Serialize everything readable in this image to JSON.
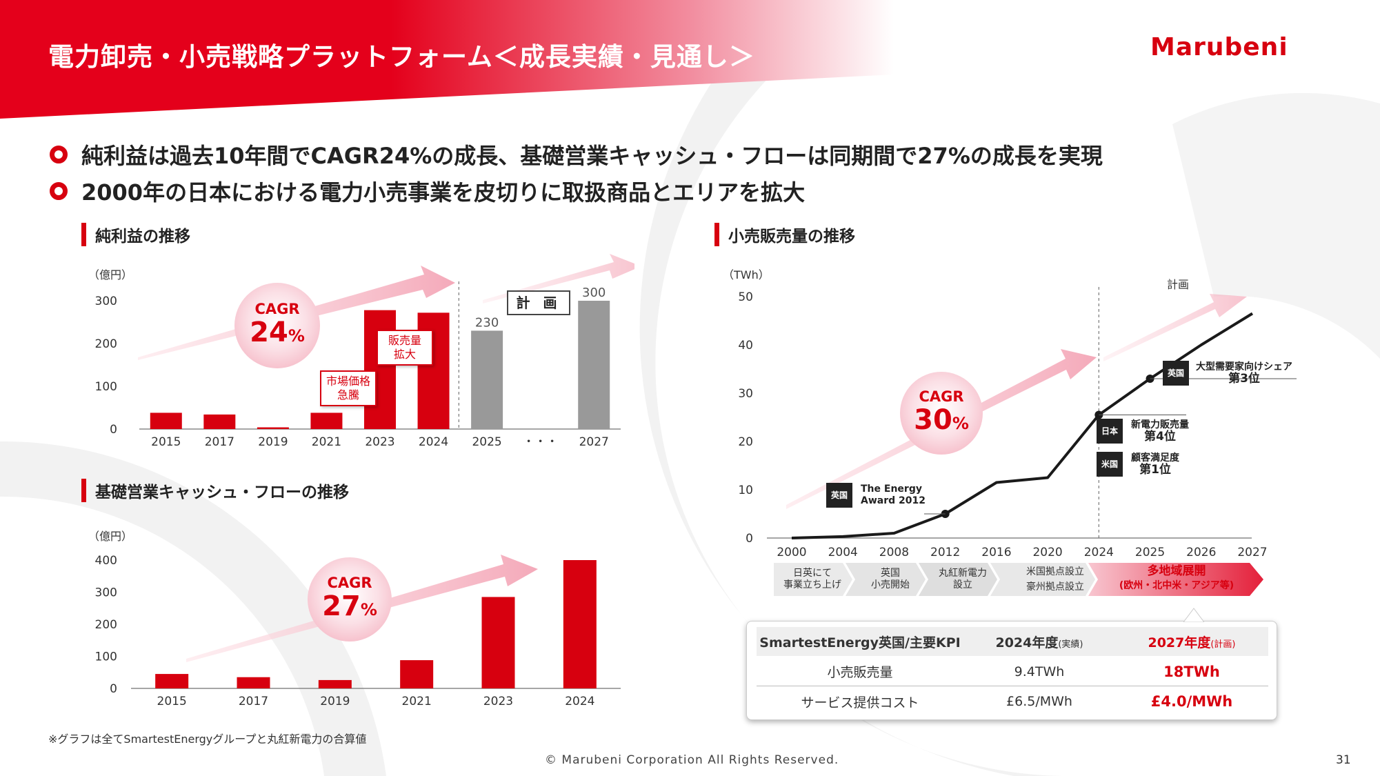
{
  "header": {
    "title": "電力卸売・小売戦略プラットフォーム＜成長実績・見通し＞",
    "logo_text": "Marubeni"
  },
  "bullets": [
    "純利益は過去10年間でCAGR24%の成長、基礎営業キャッシュ・フローは同期間で27%の成長を実現",
    "2000年の日本における電力小売事業を皮切りに取扱商品とエリアを拡大"
  ],
  "colors": {
    "accent_red": "#d7000f",
    "plan_gray": "#999999",
    "line_black": "#1a1a1a"
  },
  "net_income": {
    "heading": "純利益の推移",
    "unit": "（億円）",
    "cagr_label": "CAGR",
    "cagr_value": "24",
    "cagr_pct": "%",
    "plan_label": "計 画",
    "callout_market": "市場価格\n急騰",
    "callout_sales": "販売量\n拡大",
    "ellipsis": "・・・"
  },
  "cash_flow": {
    "heading": "基礎営業キャッシュ・フローの推移",
    "unit": "（億円）",
    "cagr_label": "CAGR",
    "cagr_value": "27",
    "cagr_pct": "%"
  },
  "retail_volume": {
    "heading": "小売販売量の推移",
    "unit": "（TWh）",
    "plan_text": "計画",
    "cagr_label": "CAGR",
    "cagr_value": "30",
    "cagr_pct": "%",
    "awards": [
      {
        "tag": "英国",
        "line1": "The Energy",
        "line2": "Award 2012"
      },
      {
        "tag": "英国",
        "line1": "大型需要家向けシェア",
        "line2": "第3位"
      },
      {
        "tag": "日本",
        "line1": "新電力販売量",
        "line2": "第4位"
      },
      {
        "tag": "米国",
        "line1": "顧客満足度",
        "line2": "第1位"
      }
    ],
    "timeline": [
      "日英にて\n事業立ち上げ",
      "英国\n小売開始",
      "丸紅新電力\n設立",
      "米国拠点設立",
      "豪州拠点設立",
      "多地域展開",
      "(欧州・北中米・アジア等)"
    ]
  },
  "kpi_table": {
    "headers": [
      "SmartestEnergy英国/主要KPI",
      "2024年度",
      "(実績)",
      "2027年度",
      "(計画)"
    ],
    "rows": [
      [
        "小売販売量",
        "9.4TWh",
        "18TWh"
      ],
      [
        "サービス提供コスト",
        "£6.5/MWh",
        "£4.0/MWh"
      ]
    ]
  },
  "footer": {
    "note": "※グラフは全てSmartestEnergyグループと丸紅新電力の合算値",
    "copyright": "© Marubeni Corporation All Rights Reserved.",
    "page": "31"
  },
  "chart_data": [
    {
      "type": "bar",
      "title": "純利益の推移",
      "ylabel": "（億円）",
      "ylim": [
        0,
        300
      ],
      "yticks": [
        0,
        100,
        200,
        300
      ],
      "categories": [
        "2015",
        "2017",
        "2019",
        "2021",
        "2023",
        "2024",
        "2025",
        "・・・",
        "2027"
      ],
      "values": [
        38,
        34,
        4,
        38,
        278,
        272,
        230,
        null,
        300
      ],
      "plan_from_index": 6,
      "data_labels": {
        "6": "230",
        "8": "300"
      }
    },
    {
      "type": "bar",
      "title": "基礎営業キャッシュ・フローの推移",
      "ylabel": "（億円）",
      "ylim": [
        0,
        400
      ],
      "yticks": [
        0,
        100,
        200,
        300,
        400
      ],
      "categories": [
        "2015",
        "2017",
        "2019",
        "2021",
        "2023",
        "2024"
      ],
      "values": [
        45,
        35,
        26,
        88,
        285,
        400
      ]
    },
    {
      "type": "line",
      "title": "小売販売量の推移",
      "ylabel": "（TWh）",
      "ylim": [
        0,
        50
      ],
      "yticks": [
        0,
        10,
        20,
        30,
        40,
        50
      ],
      "xticks": [
        "2000",
        "2004",
        "2008",
        "2012",
        "2016",
        "2020",
        "2024",
        "2025",
        "2026",
        "2027"
      ],
      "x": [
        2000,
        2004,
        2008,
        2012,
        2016,
        2020,
        2024,
        2025,
        2026,
        2027
      ],
      "y": [
        0,
        0.3,
        1,
        5,
        11.5,
        12.5,
        25.5,
        33,
        40,
        46.5
      ],
      "plan_from": 2024
    }
  ]
}
